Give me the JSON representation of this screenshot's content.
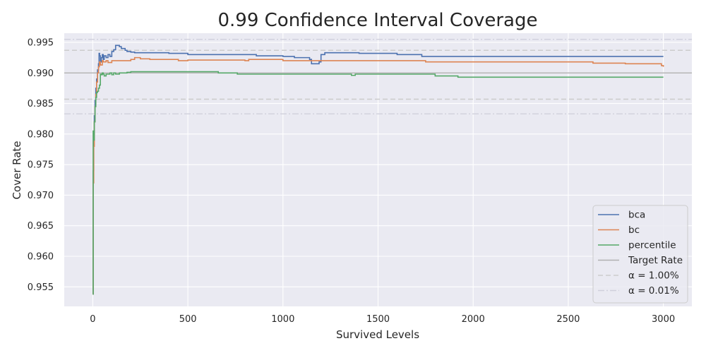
{
  "chart_data": {
    "type": "line",
    "title": "0.99 Confidence Interval Coverage",
    "xlabel": "Survived Levels",
    "ylabel": "Cover Rate",
    "xlim": [
      -150,
      3150
    ],
    "ylim": [
      0.9518,
      0.9965
    ],
    "xticks": [
      0,
      500,
      1000,
      1500,
      2000,
      2500,
      3000
    ],
    "xtick_labels": [
      "0",
      "500",
      "1000",
      "1500",
      "2000",
      "2500",
      "3000"
    ],
    "yticks": [
      0.955,
      0.96,
      0.965,
      0.97,
      0.975,
      0.98,
      0.985,
      0.99,
      0.995
    ],
    "ytick_labels": [
      "0.955",
      "0.960",
      "0.965",
      "0.970",
      "0.975",
      "0.980",
      "0.985",
      "0.990",
      "0.995"
    ],
    "grid": true,
    "legend_position": "lower-right",
    "series": [
      {
        "name": "bca",
        "color": "#4c72b0",
        "x": [
          0,
          2,
          5,
          8,
          12,
          16,
          20,
          25,
          30,
          33,
          36,
          40,
          45,
          50,
          55,
          60,
          70,
          80,
          90,
          100,
          110,
          120,
          130,
          140,
          150,
          160,
          170,
          180,
          200,
          220,
          250,
          300,
          400,
          500,
          600,
          700,
          800,
          860,
          900,
          1000,
          1060,
          1100,
          1140,
          1150,
          1170,
          1190,
          1200,
          1220,
          1250,
          1300,
          1400,
          1500,
          1600,
          1700,
          1730,
          1800,
          2000,
          2500,
          3000
        ],
        "y": [
          0.9538,
          0.974,
          0.98,
          0.983,
          0.9855,
          0.9875,
          0.989,
          0.9905,
          0.9915,
          0.9932,
          0.9928,
          0.9918,
          0.9925,
          0.993,
          0.9922,
          0.9928,
          0.9925,
          0.993,
          0.9927,
          0.9935,
          0.9938,
          0.9945,
          0.9945,
          0.9943,
          0.994,
          0.994,
          0.9937,
          0.9935,
          0.9934,
          0.9933,
          0.9933,
          0.9933,
          0.9932,
          0.993,
          0.993,
          0.993,
          0.993,
          0.9928,
          0.9928,
          0.9927,
          0.9925,
          0.9925,
          0.9922,
          0.9915,
          0.9915,
          0.9918,
          0.993,
          0.9933,
          0.9933,
          0.9933,
          0.9932,
          0.9932,
          0.993,
          0.993,
          0.9927,
          0.9927,
          0.9927,
          0.9927,
          0.9927
        ]
      },
      {
        "name": "bc",
        "color": "#dd8452",
        "x": [
          0,
          2,
          5,
          8,
          12,
          16,
          20,
          25,
          30,
          35,
          40,
          45,
          50,
          55,
          60,
          70,
          80,
          90,
          100,
          120,
          140,
          160,
          180,
          200,
          220,
          250,
          300,
          400,
          450,
          500,
          600,
          700,
          800,
          820,
          900,
          1000,
          1100,
          1200,
          1300,
          1400,
          1500,
          1600,
          1700,
          1750,
          1800,
          2000,
          2500,
          2630,
          2700,
          2800,
          2900,
          2990,
          3000
        ],
        "y": [
          0.9538,
          0.972,
          0.978,
          0.982,
          0.9845,
          0.9865,
          0.9885,
          0.99,
          0.991,
          0.9918,
          0.9913,
          0.9913,
          0.992,
          0.9918,
          0.9918,
          0.992,
          0.9917,
          0.9917,
          0.992,
          0.992,
          0.992,
          0.992,
          0.992,
          0.9922,
          0.9925,
          0.9923,
          0.9922,
          0.9922,
          0.992,
          0.9921,
          0.9921,
          0.9921,
          0.992,
          0.9922,
          0.9922,
          0.992,
          0.992,
          0.992,
          0.992,
          0.992,
          0.992,
          0.992,
          0.992,
          0.9918,
          0.9918,
          0.9918,
          0.9918,
          0.9916,
          0.9916,
          0.9915,
          0.9915,
          0.9912,
          0.991
        ]
      },
      {
        "name": "percentile",
        "color": "#55a868",
        "x": [
          0,
          2,
          5,
          8,
          12,
          16,
          20,
          25,
          30,
          35,
          40,
          45,
          50,
          55,
          60,
          70,
          80,
          90,
          100,
          110,
          120,
          140,
          160,
          180,
          200,
          300,
          400,
          500,
          600,
          660,
          700,
          760,
          800,
          900,
          1000,
          1100,
          1200,
          1300,
          1360,
          1380,
          1400,
          1500,
          1600,
          1700,
          1800,
          1900,
          1920,
          2000,
          2500,
          3000
        ],
        "y": [
          0.9538,
          0.9805,
          0.979,
          0.982,
          0.9845,
          0.986,
          0.9868,
          0.987,
          0.9875,
          0.988,
          0.9898,
          0.9897,
          0.99,
          0.9898,
          0.9895,
          0.9898,
          0.9898,
          0.99,
          0.9897,
          0.99,
          0.9898,
          0.99,
          0.99,
          0.9901,
          0.9902,
          0.9902,
          0.9902,
          0.9902,
          0.9902,
          0.99,
          0.99,
          0.9898,
          0.9898,
          0.9898,
          0.9898,
          0.9898,
          0.9898,
          0.9898,
          0.9896,
          0.9898,
          0.9898,
          0.9898,
          0.9898,
          0.9898,
          0.9895,
          0.9895,
          0.9893,
          0.9893,
          0.9893,
          0.9893
        ]
      }
    ],
    "reference_lines": [
      {
        "name": "Target Rate",
        "y": 0.99,
        "color": "#b0b0b0",
        "style": "solid"
      },
      {
        "name": "α = 1.00%",
        "y": [
          0.9857,
          0.9937
        ],
        "color": "#cccccc",
        "style": "dashed"
      },
      {
        "name": "α = 0.01%",
        "y": [
          0.9833,
          0.9955
        ],
        "color": "#d0d0dc",
        "style": "dashdot"
      }
    ],
    "colors": {
      "plot_background": "#eaeaf2",
      "grid": "#ffffff",
      "text": "#262626"
    }
  }
}
